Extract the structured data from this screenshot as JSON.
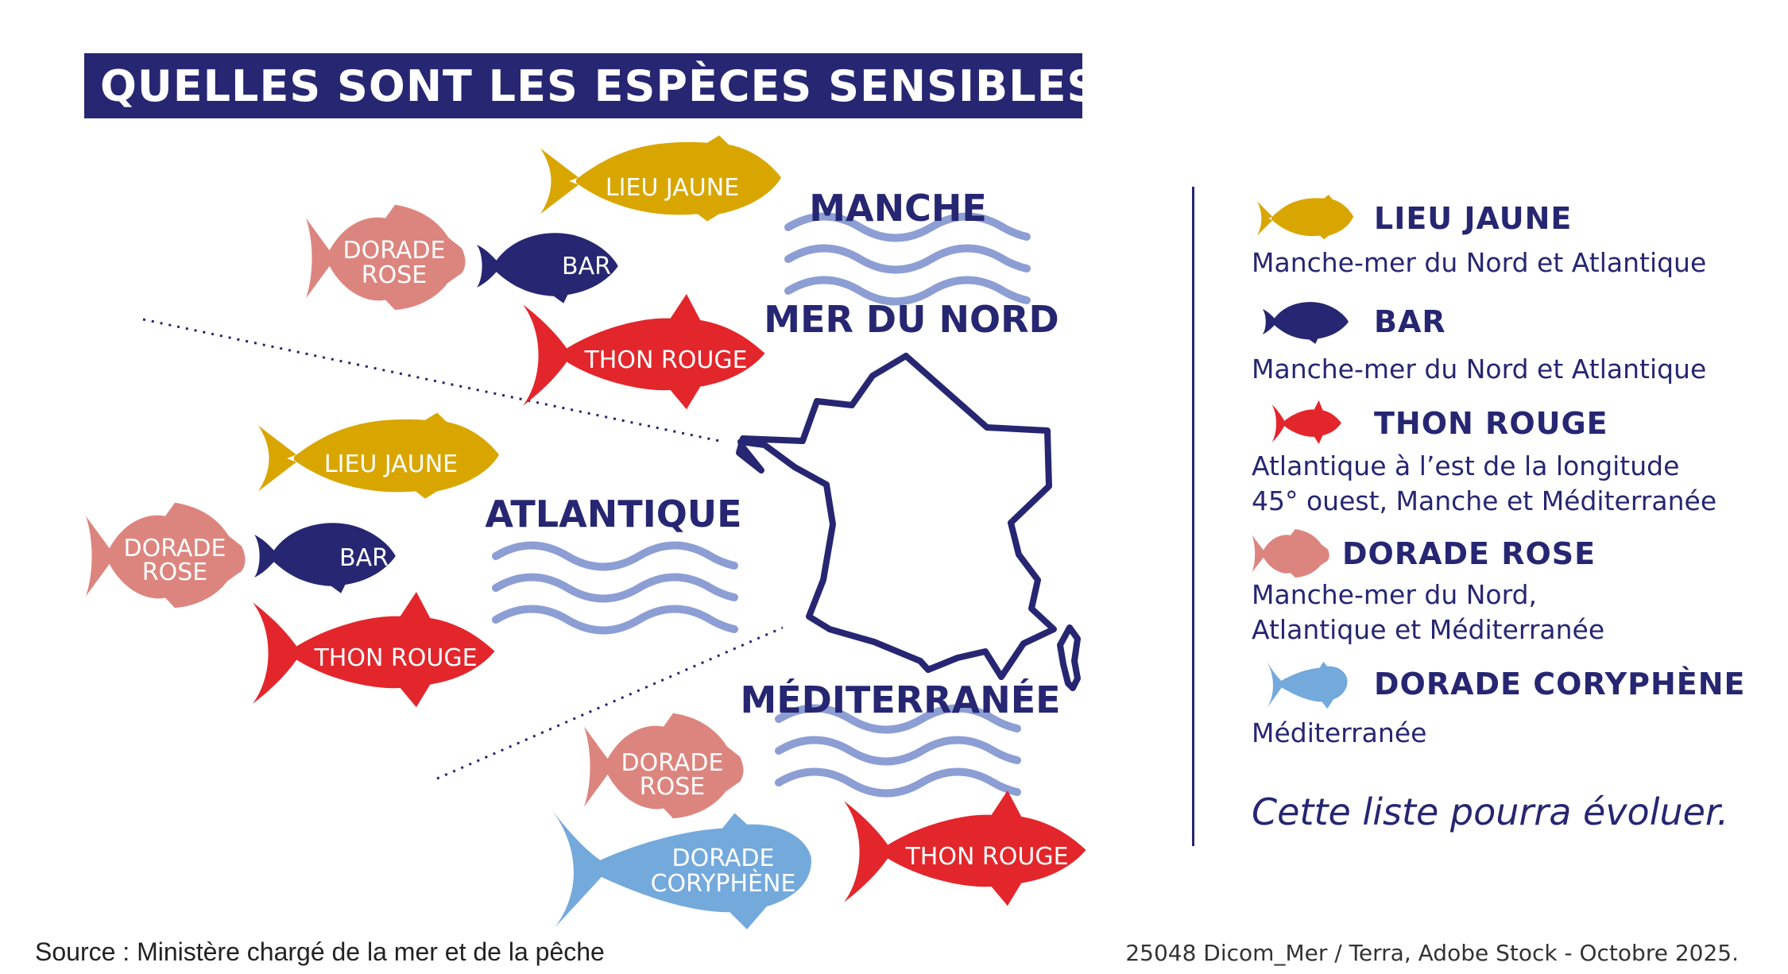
{
  "title": "QUELLES SONT LES ESPÈCES SENSIBLES ?",
  "colors": {
    "navy": "#262672",
    "lieu_jaune": "#D9A600",
    "bar": "#262672",
    "thon_rouge": "#E3262B",
    "dorade_rose": "#DC857E",
    "dorade_coryphene": "#74A9DC",
    "waves": "#8C9ED3"
  },
  "seas": {
    "manche": "MANCHE",
    "mer_du_nord": "MER DU NORD",
    "atlantique": "ATLANTIQUE",
    "mediterranee": "MÉDITERRANÉE"
  },
  "fish": {
    "manche": {
      "lieu_jaune": "LIEU JAUNE",
      "dorade_rose_1": "DORADE",
      "dorade_rose_2": "ROSE",
      "bar": "BAR",
      "thon_rouge": "THON ROUGE"
    },
    "atlantique": {
      "lieu_jaune": "LIEU JAUNE",
      "dorade_rose_1": "DORADE",
      "dorade_rose_2": "ROSE",
      "bar": "BAR",
      "thon_rouge": "THON ROUGE"
    },
    "mediterranee": {
      "dorade_rose_1": "DORADE",
      "dorade_rose_2": "ROSE",
      "coryphene_1": "DORADE",
      "coryphene_2": "CORYPHÈNE",
      "thon_rouge": "THON ROUGE"
    }
  },
  "legend": {
    "lieu_jaune": {
      "name": "LIEU JAUNE",
      "desc": [
        "Manche-mer du Nord et Atlantique"
      ],
      "icon": "lieu-jaune-fish-icon"
    },
    "bar": {
      "name": "BAR",
      "desc": [
        "Manche-mer du Nord et Atlantique"
      ],
      "icon": "bar-fish-icon"
    },
    "thon_rouge": {
      "name": "THON ROUGE",
      "desc": [
        "Atlantique à l’est de la longitude",
        "45° ouest, Manche et Méditerranée"
      ],
      "icon": "thon-rouge-fish-icon"
    },
    "dorade_rose": {
      "name": "DORADE ROSE",
      "desc": [
        "Manche-mer du Nord,",
        "Atlantique et Méditerranée"
      ],
      "icon": "dorade-rose-fish-icon"
    },
    "dorade_coryphene": {
      "name": "DORADE CORYPHÈNE",
      "desc": [
        "Méditerranée"
      ],
      "icon": "dorade-coryphene-fish-icon"
    },
    "note": "Cette liste pourra évoluer."
  },
  "footer": {
    "source": "Source : Ministère chargé de la mer et de la pêche",
    "credit": "25048 Dicom_Mer / Terra, Adobe Stock - Octobre 2025."
  }
}
